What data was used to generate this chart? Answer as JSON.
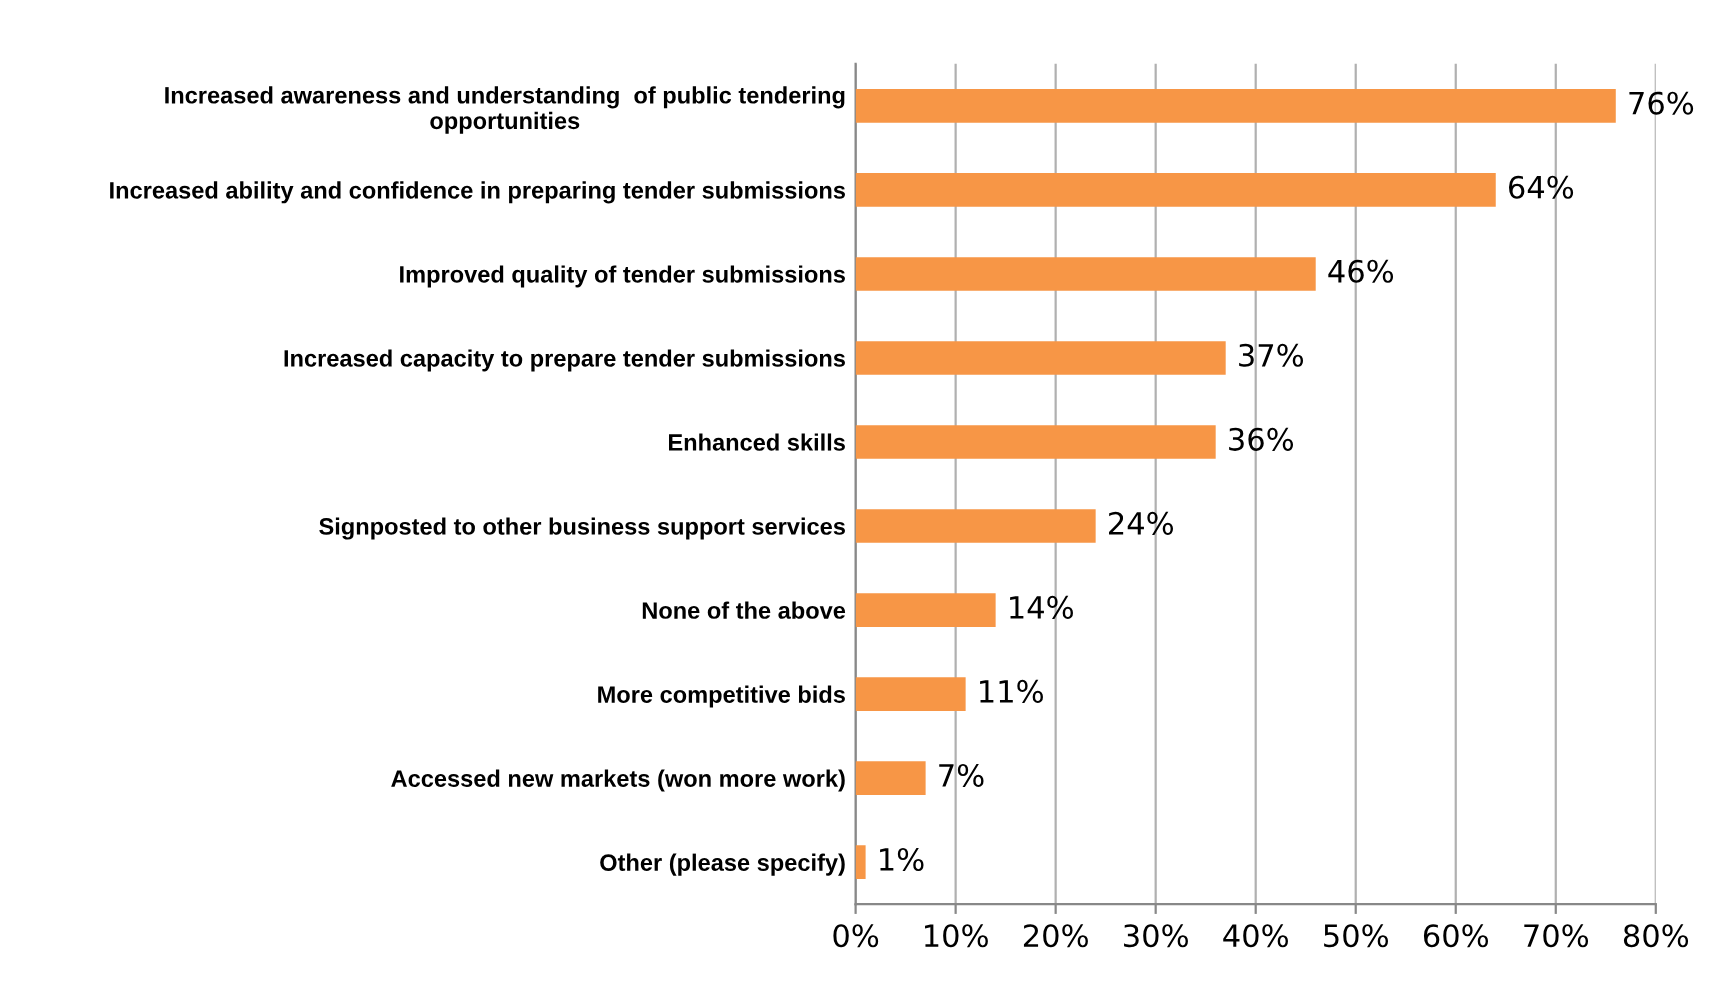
{
  "chart_data": {
    "type": "bar",
    "orientation": "horizontal",
    "categories": [
      "Increased awareness and understanding  of public tendering\nopportunities",
      "Increased ability and confidence in preparing tender submissions",
      "Improved quality of tender submissions",
      "Increased capacity to prepare tender submissions",
      "Enhanced skills",
      "Signposted to other business support services",
      "None of the above",
      "More competitive bids",
      "Accessed new markets (won more work)",
      "Other (please specify)"
    ],
    "values": [
      76,
      64,
      46,
      37,
      36,
      24,
      14,
      11,
      7,
      1
    ],
    "value_labels": [
      "76%",
      "64%",
      "46%",
      "37%",
      "36%",
      "24%",
      "14%",
      "11%",
      "7%",
      "1%"
    ],
    "color": "#f79646",
    "xlim": [
      0,
      80
    ],
    "xticks": [
      {
        "value": 0,
        "label": "0%"
      },
      {
        "value": 10,
        "label": "10%"
      },
      {
        "value": 20,
        "label": "20%"
      },
      {
        "value": 30,
        "label": "30%"
      },
      {
        "value": 40,
        "label": "40%"
      },
      {
        "value": 50,
        "label": "50%"
      },
      {
        "value": 60,
        "label": "60%"
      },
      {
        "value": 70,
        "label": "70%"
      },
      {
        "value": 80,
        "label": "80%"
      }
    ],
    "grid": "x",
    "legend": false
  }
}
